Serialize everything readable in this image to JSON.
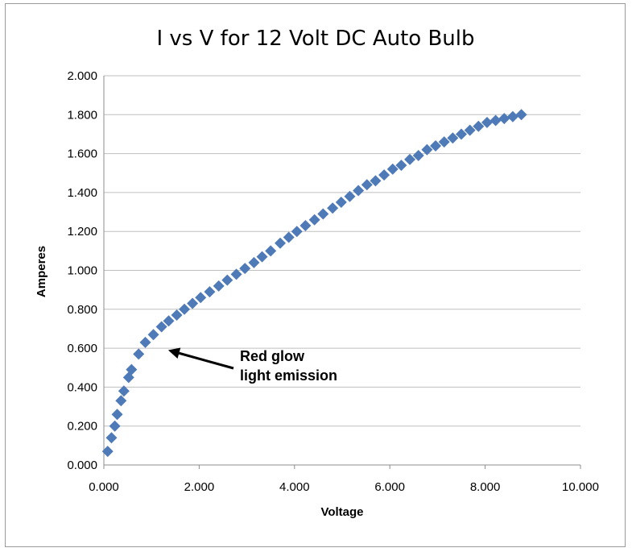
{
  "chart_data": {
    "type": "scatter",
    "title": "I vs V for 12 Volt DC Auto Bulb",
    "xlabel": "Voltage",
    "ylabel": "Amperes",
    "xlim": [
      0,
      10
    ],
    "ylim": [
      0,
      2
    ],
    "x_ticks": [
      "0.000",
      "2.000",
      "4.000",
      "6.000",
      "8.000",
      "10.000"
    ],
    "y_ticks": [
      "0.000",
      "0.200",
      "0.400",
      "0.600",
      "0.800",
      "1.000",
      "1.200",
      "1.400",
      "1.600",
      "1.800",
      "2.000"
    ],
    "grid": "horizontal",
    "legend": "none",
    "marker": "diamond",
    "marker_color": "#4F7AB8",
    "annotation": {
      "lines": [
        "Red glow",
        "light emission"
      ],
      "arrow_target": [
        1.35,
        0.59
      ]
    },
    "series": [
      {
        "points": [
          [
            0.08,
            0.07
          ],
          [
            0.16,
            0.14
          ],
          [
            0.23,
            0.2
          ],
          [
            0.28,
            0.26
          ],
          [
            0.36,
            0.33
          ],
          [
            0.42,
            0.38
          ],
          [
            0.52,
            0.45
          ],
          [
            0.58,
            0.49
          ],
          [
            0.73,
            0.57
          ],
          [
            0.87,
            0.63
          ],
          [
            1.04,
            0.67
          ],
          [
            1.21,
            0.71
          ],
          [
            1.36,
            0.74
          ],
          [
            1.53,
            0.77
          ],
          [
            1.69,
            0.8
          ],
          [
            1.86,
            0.83
          ],
          [
            2.03,
            0.86
          ],
          [
            2.22,
            0.89
          ],
          [
            2.41,
            0.92
          ],
          [
            2.59,
            0.95
          ],
          [
            2.78,
            0.98
          ],
          [
            2.96,
            1.01
          ],
          [
            3.15,
            1.04
          ],
          [
            3.32,
            1.07
          ],
          [
            3.5,
            1.1
          ],
          [
            3.7,
            1.14
          ],
          [
            3.88,
            1.17
          ],
          [
            4.05,
            1.2
          ],
          [
            4.23,
            1.23
          ],
          [
            4.42,
            1.26
          ],
          [
            4.6,
            1.29
          ],
          [
            4.8,
            1.32
          ],
          [
            4.98,
            1.35
          ],
          [
            5.16,
            1.38
          ],
          [
            5.34,
            1.41
          ],
          [
            5.52,
            1.44
          ],
          [
            5.7,
            1.46
          ],
          [
            5.88,
            1.49
          ],
          [
            6.06,
            1.52
          ],
          [
            6.24,
            1.54
          ],
          [
            6.42,
            1.57
          ],
          [
            6.6,
            1.59
          ],
          [
            6.78,
            1.62
          ],
          [
            6.96,
            1.64
          ],
          [
            7.14,
            1.66
          ],
          [
            7.32,
            1.68
          ],
          [
            7.5,
            1.7
          ],
          [
            7.68,
            1.72
          ],
          [
            7.86,
            1.74
          ],
          [
            8.04,
            1.76
          ],
          [
            8.22,
            1.77
          ],
          [
            8.4,
            1.78
          ],
          [
            8.58,
            1.79
          ],
          [
            8.76,
            1.8
          ]
        ]
      }
    ]
  }
}
